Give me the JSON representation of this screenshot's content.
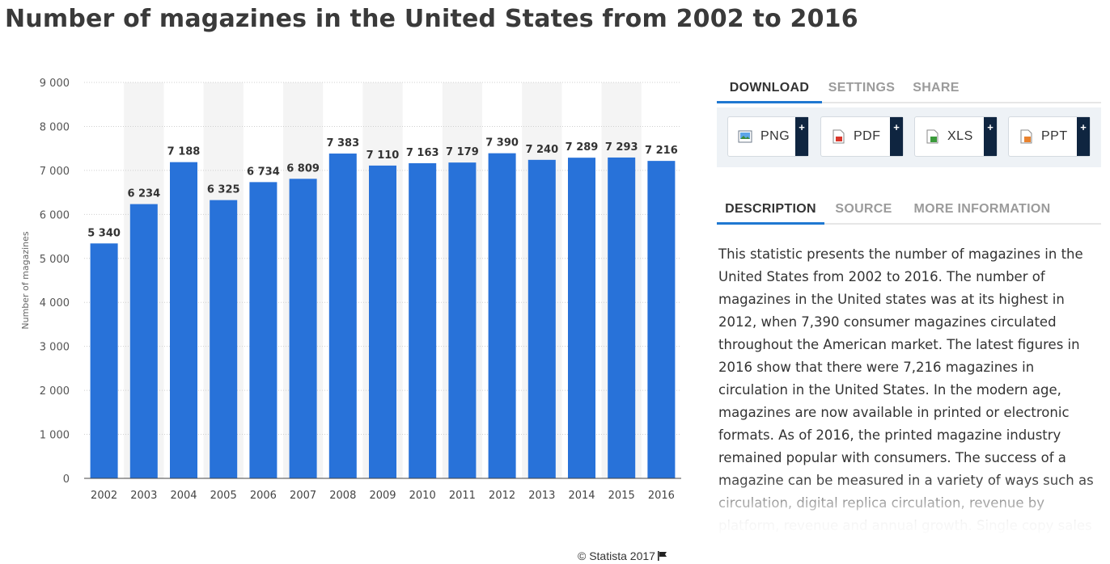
{
  "title": "Number of magazines in the United States from 2002 to 2016",
  "copyright": "© Statista 2017",
  "download_tabs": [
    {
      "label": "DOWNLOAD"
    },
    {
      "label": "SETTINGS"
    },
    {
      "label": "SHARE"
    }
  ],
  "download_buttons": [
    {
      "label": "PNG",
      "plus": "+"
    },
    {
      "label": "PDF",
      "plus": "+"
    },
    {
      "label": "XLS",
      "plus": "+"
    },
    {
      "label": "PPT",
      "plus": "+"
    }
  ],
  "info_tabs": [
    {
      "label": "DESCRIPTION"
    },
    {
      "label": "SOURCE"
    },
    {
      "label": "MORE INFORMATION"
    }
  ],
  "description": "This statistic presents the number of magazines in the United States from 2002 to 2016. The number of magazines in the United states was at its highest in 2012, when 7,390 consumer magazines circulated throughout the American market. The latest figures in 2016 show that there were 7,216 magazines in circulation in the United States. In the modern age, magazines are now available in printed or electronic formats. As of 2016, the printed magazine industry remained popular with consumers. The success of a magazine can be measured in a variety of ways such as circulation, digital replica circulation, revenue by platform, revenue and annual growth. Single copy sales and subscription figures are also important",
  "colors": {
    "bar": "#2872d9",
    "accent": "#1f78d1",
    "band": "#f4f4f4"
  },
  "chart_data": {
    "type": "bar",
    "title": "Number of magazines in the United States from 2002 to 2016",
    "xlabel": "",
    "ylabel": "Number of magazines",
    "ylim": [
      0,
      9000
    ],
    "yticks": [
      0,
      1000,
      2000,
      3000,
      4000,
      5000,
      6000,
      7000,
      8000,
      9000
    ],
    "ytick_labels": [
      "0",
      "1 000",
      "2 000",
      "3 000",
      "4 000",
      "5 000",
      "6 000",
      "7 000",
      "8 000",
      "9 000"
    ],
    "categories": [
      "2002",
      "2003",
      "2004",
      "2005",
      "2006",
      "2007",
      "2008",
      "2009",
      "2010",
      "2011",
      "2012",
      "2013",
      "2014",
      "2015",
      "2016"
    ],
    "values": [
      5340,
      6234,
      7188,
      6325,
      6734,
      6809,
      7383,
      7110,
      7163,
      7179,
      7390,
      7240,
      7289,
      7293,
      7216
    ],
    "value_labels": [
      "5 340",
      "6 234",
      "7 188",
      "6 325",
      "6 734",
      "6 809",
      "7 383",
      "7 110",
      "7 163",
      "7 179",
      "7 390",
      "7 240",
      "7 289",
      "7 293",
      "7 216"
    ],
    "grid": true
  }
}
